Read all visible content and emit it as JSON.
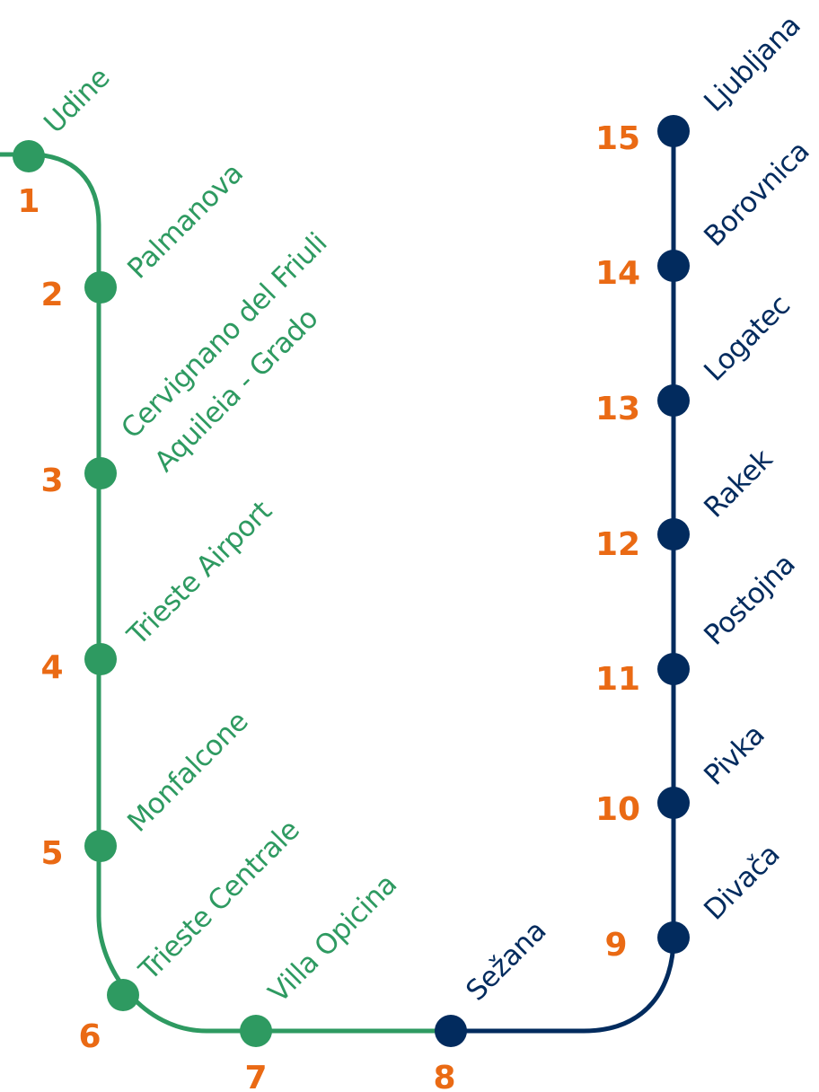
{
  "colors": {
    "italy_line": "#2e9a61",
    "slovenia_line": "#022b5e",
    "number": "#ea6a14"
  },
  "stations": [
    {
      "number": "1",
      "name": "Udine",
      "line": "italy"
    },
    {
      "number": "2",
      "name": "Palmanova",
      "line": "italy"
    },
    {
      "number": "3",
      "name": "Cervignano del Friuli",
      "name_line2": "Aquileia - Grado",
      "line": "italy"
    },
    {
      "number": "4",
      "name": "Trieste Airport",
      "line": "italy"
    },
    {
      "number": "5",
      "name": "Monfalcone",
      "line": "italy"
    },
    {
      "number": "6",
      "name": "Trieste Centrale",
      "line": "italy"
    },
    {
      "number": "7",
      "name": "Villa Opicina",
      "line": "italy"
    },
    {
      "number": "8",
      "name": "Sežana",
      "line": "slovenia"
    },
    {
      "number": "9",
      "name": "Divača",
      "line": "slovenia"
    },
    {
      "number": "10",
      "name": "Pivka",
      "line": "slovenia"
    },
    {
      "number": "11",
      "name": "Postojna",
      "line": "slovenia"
    },
    {
      "number": "12",
      "name": "Rakek",
      "line": "slovenia"
    },
    {
      "number": "13",
      "name": "Logatec",
      "line": "slovenia"
    },
    {
      "number": "14",
      "name": "Borovnica",
      "line": "slovenia"
    },
    {
      "number": "15",
      "name": "Ljubljana",
      "line": "slovenia"
    }
  ]
}
